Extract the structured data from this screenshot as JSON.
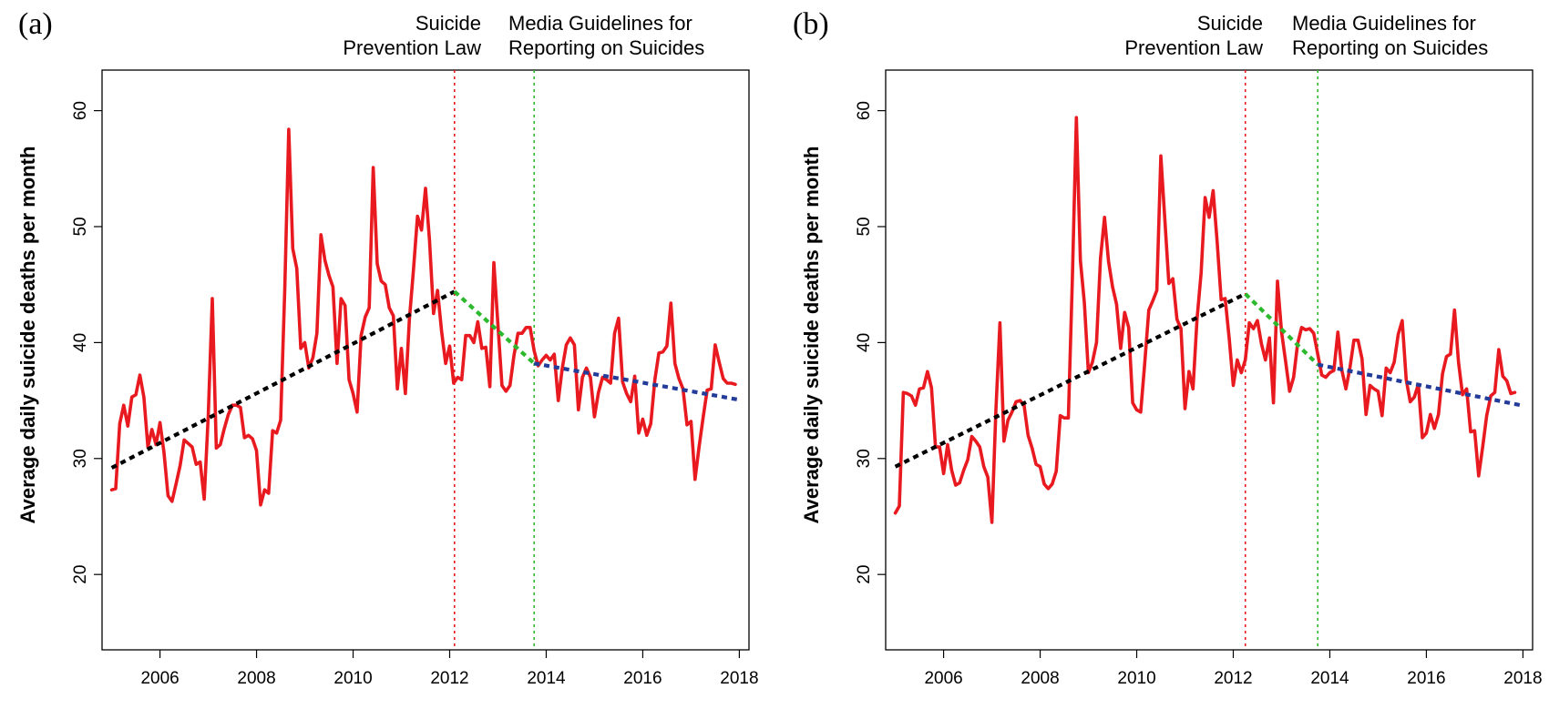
{
  "colors": {
    "observed": "#e8191f",
    "pre_trend": "#000000",
    "post_law_trend": "#2db92d",
    "post_guideline_trend": "#233c99",
    "law_line": "#e8191f",
    "guideline_line": "#2db92d",
    "axis": "#000000"
  },
  "chart_data": [
    {
      "type": "line",
      "panel_label": "(a)",
      "ylabel": "Average daily suicide deaths per month",
      "xlabel": "",
      "xlim": [
        2004.8,
        2018.2
      ],
      "ylim": [
        13.5,
        63.5
      ],
      "x_ticks": [
        2006,
        2008,
        2010,
        2012,
        2014,
        2016,
        2018
      ],
      "x_tick_labels": [
        "2006",
        "2008",
        "2010",
        "2012",
        "2014",
        "2016",
        "2018"
      ],
      "y_ticks": [
        20,
        30,
        40,
        50,
        60
      ],
      "y_tick_labels": [
        "20",
        "30",
        "40",
        "50",
        "60"
      ],
      "grid": false,
      "legend": "none",
      "interventions": [
        {
          "x": 2012.1,
          "label_lines": [
            "Suicide",
            "Prevention Law"
          ],
          "style": "red-dotted"
        },
        {
          "x": 2013.75,
          "label_lines": [
            "Media Guidelines for",
            "Reporting on Suicides"
          ],
          "style": "green-dotted"
        }
      ],
      "series": [
        {
          "role": "observed",
          "x_start": 2005.0,
          "x_step": 0.08333,
          "values": [
            27.3,
            27.4,
            33.0,
            34.6,
            32.8,
            35.3,
            35.5,
            37.2,
            35.3,
            31.0,
            32.5,
            31.2,
            33.1,
            30.5,
            26.8,
            26.3,
            27.8,
            29.4,
            31.6,
            31.3,
            31.0,
            29.5,
            29.7,
            26.5,
            33.8,
            43.8,
            30.9,
            31.2,
            32.6,
            33.8,
            34.6,
            34.6,
            34.4,
            31.8,
            32.0,
            31.7,
            30.7,
            26.0,
            27.3,
            27.0,
            32.4,
            32.2,
            33.3,
            44.5,
            58.4,
            48.1,
            46.4,
            39.5,
            40.0,
            37.8,
            38.7,
            40.8,
            49.3,
            47.1,
            45.8,
            44.8,
            38.2,
            43.8,
            43.2,
            36.8,
            35.6,
            34.0,
            40.6,
            42.2,
            43.0,
            55.1,
            46.8,
            45.3,
            45.0,
            43.0,
            42.3,
            36.0,
            39.5,
            35.6,
            42.0,
            46.2,
            50.9,
            49.7,
            53.3,
            48.8,
            42.5,
            44.5,
            41.0,
            38.2,
            39.7,
            36.5,
            37.0,
            36.8,
            40.6,
            40.6,
            40.0,
            41.8,
            39.5,
            39.6,
            36.2,
            46.9,
            41.5,
            36.3,
            35.8,
            36.3,
            38.9,
            40.8,
            40.8,
            41.3,
            41.3,
            39.3,
            38.0,
            38.5,
            38.9,
            38.5,
            39.0,
            35.0,
            37.8,
            39.8,
            40.4,
            39.8,
            34.2,
            37.0,
            37.8,
            37.0,
            33.6,
            35.7,
            37.0,
            36.8,
            36.5,
            40.8,
            42.1,
            36.6,
            35.6,
            34.9,
            37.1,
            32.2,
            33.4,
            32.0,
            33.0,
            36.8,
            39.1,
            39.2,
            39.7,
            43.4,
            38.2,
            36.9,
            36.0,
            32.9,
            33.2,
            28.2,
            31.0,
            33.5,
            35.9,
            36.0,
            39.8,
            38.3,
            36.9,
            36.5,
            36.5,
            36.4
          ]
        },
        {
          "role": "pre_trend",
          "x": [
            2005.0,
            2012.1
          ],
          "values": [
            29.2,
            44.4
          ]
        },
        {
          "role": "post_law_trend",
          "x": [
            2012.1,
            2013.75
          ],
          "values": [
            44.4,
            38.2
          ]
        },
        {
          "role": "post_guideline_trend",
          "x": [
            2013.75,
            2017.95
          ],
          "values": [
            38.2,
            35.1
          ]
        }
      ]
    },
    {
      "type": "line",
      "panel_label": "(b)",
      "ylabel": "Average daily suicide deaths per month",
      "xlabel": "",
      "xlim": [
        2004.8,
        2018.2
      ],
      "ylim": [
        13.5,
        63.5
      ],
      "x_ticks": [
        2006,
        2008,
        2010,
        2012,
        2014,
        2016,
        2018
      ],
      "x_tick_labels": [
        "2006",
        "2008",
        "2010",
        "2012",
        "2014",
        "2016",
        "2018"
      ],
      "y_ticks": [
        20,
        30,
        40,
        50,
        60
      ],
      "y_tick_labels": [
        "20",
        "30",
        "40",
        "50",
        "60"
      ],
      "grid": false,
      "legend": "none",
      "interventions": [
        {
          "x": 2012.25,
          "label_lines": [
            "Suicide",
            "Prevention Law"
          ],
          "style": "red-dotted"
        },
        {
          "x": 2013.75,
          "label_lines": [
            "Media Guidelines for",
            "Reporting on Suicides"
          ],
          "style": "green-dotted"
        }
      ],
      "series": [
        {
          "role": "observed",
          "x_start": 2005.0,
          "x_step": 0.08333,
          "values": [
            25.3,
            25.9,
            35.7,
            35.6,
            35.4,
            34.6,
            36.0,
            36.1,
            37.5,
            36.1,
            31.0,
            31.0,
            28.7,
            31.2,
            29.0,
            27.7,
            27.9,
            29.0,
            29.9,
            31.9,
            31.5,
            31.0,
            29.3,
            28.4,
            24.5,
            34.2,
            41.7,
            31.5,
            33.3,
            34.0,
            34.9,
            35.0,
            34.6,
            32.0,
            30.9,
            29.5,
            29.3,
            27.8,
            27.4,
            27.8,
            28.9,
            33.7,
            33.5,
            33.5,
            45.5,
            59.4,
            47.1,
            43.4,
            37.4,
            38.3,
            40.0,
            47.3,
            50.8,
            47.0,
            44.8,
            43.3,
            39.5,
            42.6,
            41.3,
            34.8,
            34.2,
            34.0,
            38.2,
            42.8,
            43.6,
            44.5,
            56.1,
            50.6,
            45.1,
            45.5,
            42.0,
            41.2,
            34.3,
            37.5,
            36.0,
            42.0,
            46.0,
            52.5,
            50.8,
            53.1,
            48.7,
            43.7,
            43.8,
            40.3,
            36.3,
            38.5,
            37.4,
            38.5,
            41.7,
            41.2,
            41.9,
            39.9,
            38.5,
            40.4,
            34.8,
            45.3,
            40.9,
            38.4,
            35.8,
            37.0,
            39.9,
            41.3,
            41.1,
            41.2,
            40.8,
            39.0,
            37.2,
            37.0,
            37.4,
            37.6,
            40.9,
            37.6,
            36.0,
            37.8,
            40.2,
            40.2,
            38.6,
            33.8,
            36.3,
            36.0,
            35.8,
            33.7,
            37.8,
            37.4,
            38.3,
            40.7,
            41.9,
            36.8,
            34.9,
            35.3,
            36.4,
            31.8,
            32.2,
            33.8,
            32.6,
            33.8,
            37.3,
            38.8,
            39.0,
            42.8,
            38.3,
            35.5,
            36.0,
            32.3,
            32.4,
            28.5,
            31.0,
            33.7,
            35.4,
            35.7,
            39.4,
            37.1,
            36.7,
            35.6,
            35.7
          ]
        },
        {
          "role": "pre_trend",
          "x": [
            2005.0,
            2012.25
          ],
          "values": [
            29.3,
            44.2
          ]
        },
        {
          "role": "post_law_trend",
          "x": [
            2012.25,
            2013.75
          ],
          "values": [
            44.2,
            38.1
          ]
        },
        {
          "role": "post_guideline_trend",
          "x": [
            2013.75,
            2017.95
          ],
          "values": [
            38.1,
            34.6
          ]
        }
      ]
    }
  ]
}
